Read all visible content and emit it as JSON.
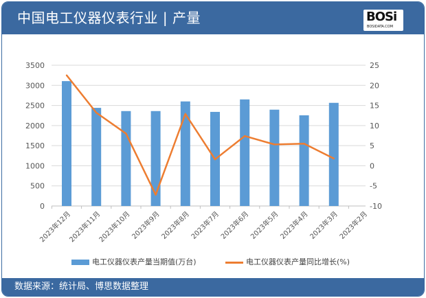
{
  "header": {
    "title": "中国电工仪器仪表行业 | 产量",
    "logo_text": "BOSI",
    "logo_subtext": "BOSIDATA.COM"
  },
  "footer": {
    "source": "数据来源：统计局、博思数据整理"
  },
  "colors": {
    "header": "#3b69a0",
    "bar": "#5b9bd5",
    "line": "#ed7d31"
  },
  "chart_data": {
    "type": "bar+line",
    "categories": [
      "2023年12月",
      "2023年11月",
      "2023年10月",
      "2023年9月",
      "2023年8月",
      "2023年7月",
      "2023年6月",
      "2023年5月",
      "2023年4月",
      "2023年3月",
      "2023年2月"
    ],
    "series": [
      {
        "name": "电工仪器仪表产量当期值(万台)",
        "type": "bar",
        "axis": "left",
        "values": [
          3105,
          2440,
          2360,
          2360,
          2600,
          2340,
          2650,
          2395,
          2255,
          2565,
          null
        ]
      },
      {
        "name": "电工仪器仪表产量同比增长(%)",
        "type": "line",
        "axis": "right",
        "values": [
          22.5,
          13.2,
          8.0,
          -7.2,
          12.9,
          1.6,
          7.4,
          5.3,
          5.5,
          1.8,
          null
        ]
      }
    ],
    "y_left": {
      "range": [
        0,
        3500
      ],
      "ticks": [
        0,
        500,
        1000,
        1500,
        2000,
        2500,
        3000,
        3500
      ]
    },
    "y_right": {
      "range": [
        -10,
        25
      ],
      "ticks": [
        -10,
        -5,
        0,
        5,
        10,
        15,
        20,
        25
      ]
    },
    "grid": true,
    "legend": "bottom"
  }
}
